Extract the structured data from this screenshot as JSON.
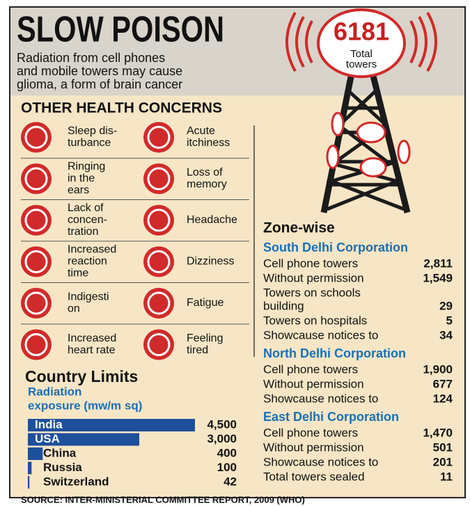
{
  "header": {
    "title": "SLOW POISON",
    "subtitle": [
      "Radiation from cell phones",
      "and mobile towers may cause",
      "glioma, a form of brain cancer"
    ]
  },
  "tower": {
    "count": "6181",
    "label": [
      "Total",
      "towers"
    ]
  },
  "health": {
    "title": "OTHER HEALTH CONCERNS",
    "left": [
      [
        "Sleep dis-",
        "turbance"
      ],
      [
        "Ringing",
        "in the",
        "ears"
      ],
      [
        "Lack of",
        "concen-",
        "tration"
      ],
      [
        "Increased",
        "reaction",
        "time"
      ],
      [
        "Indigesti",
        "on"
      ],
      [
        "Increased",
        "heart rate"
      ]
    ],
    "right": [
      [
        "Acute",
        "itchiness"
      ],
      [
        "Loss of",
        "memory"
      ],
      [
        "Headache"
      ],
      [
        "Dizziness"
      ],
      [
        "Fatigue"
      ],
      [
        "Feeling",
        "tired"
      ]
    ]
  },
  "country_limits": {
    "title": "Country Limits",
    "subtitle": [
      "Radiation",
      "exposure (mw/m sq)"
    ],
    "rows": [
      {
        "name": "India",
        "value": 4500,
        "label": "4,500"
      },
      {
        "name": "USA",
        "value": 3000,
        "label": "3,000"
      },
      {
        "name": "China",
        "value": 400,
        "label": "400"
      },
      {
        "name": "Russia",
        "value": 100,
        "label": "100"
      },
      {
        "name": "Switzerland",
        "value": 42,
        "label": "42"
      }
    ]
  },
  "zones": {
    "title": "Zone-wise",
    "items": [
      {
        "name": "South Delhi Corporation",
        "rows": [
          {
            "label": [
              "Cell phone towers"
            ],
            "value": "2,811"
          },
          {
            "label": [
              "Without permission"
            ],
            "value": "1,549"
          },
          {
            "label": [
              "Towers on schools",
              "building"
            ],
            "value": "29"
          },
          {
            "label": [
              "Towers on hospitals"
            ],
            "value": "5"
          },
          {
            "label": [
              "Showcause notices to"
            ],
            "value": "34"
          }
        ]
      },
      {
        "name": "North Delhi Corporation",
        "rows": [
          {
            "label": [
              "Cell phone towers"
            ],
            "value": "1,900"
          },
          {
            "label": [
              "Without permission"
            ],
            "value": "677"
          },
          {
            "label": [
              "Showcause notices to"
            ],
            "value": "124"
          }
        ]
      },
      {
        "name": "East Delhi Corporation",
        "rows": [
          {
            "label": [
              "Cell phone towers"
            ],
            "value": "1,470"
          },
          {
            "label": [
              "Without permission"
            ],
            "value": "501"
          },
          {
            "label": [
              "Showcause notices to"
            ],
            "value": "201"
          },
          {
            "label": [
              "Total towers sealed"
            ],
            "value": "11"
          }
        ]
      }
    ]
  },
  "source": "SOURCE: INTER-MINISTERIAL COMMITTEE REPORT, 2009 (WHO)"
}
